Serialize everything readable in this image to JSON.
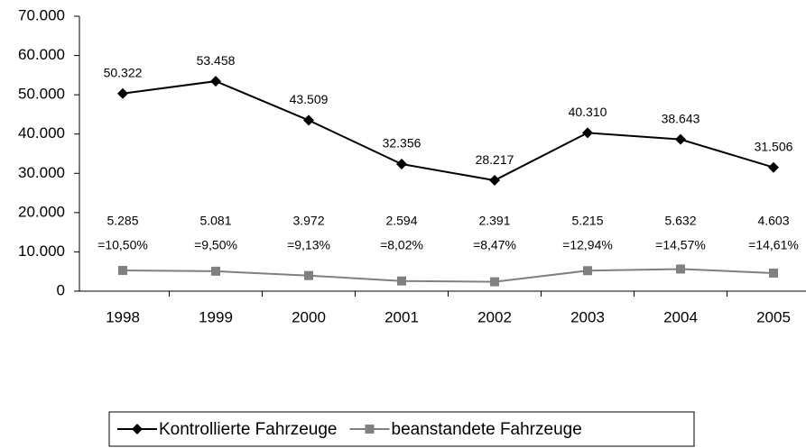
{
  "chart_data": {
    "type": "line",
    "categories": [
      "1998",
      "1999",
      "2000",
      "2001",
      "2002",
      "2003",
      "2004",
      "2005"
    ],
    "series": [
      {
        "name": "Kontrollierte Fahrzeuge",
        "color": "#000000",
        "marker": "diamond",
        "values": [
          50322,
          53458,
          43509,
          32356,
          28217,
          40310,
          38643,
          31506
        ],
        "value_labels": [
          "50.322",
          "53.458",
          "43.509",
          "32.356",
          "28.217",
          "40.310",
          "38.643",
          "31.506"
        ]
      },
      {
        "name": "beanstandete Fahrzeuge",
        "color": "#808080",
        "marker": "square",
        "values": [
          5285,
          5081,
          3972,
          2594,
          2391,
          5215,
          5632,
          4603
        ],
        "value_labels": [
          "5.285",
          "5.081",
          "3.972",
          "2.594",
          "2.391",
          "5.215",
          "5.632",
          "4.603"
        ],
        "shares": [
          "=10,50%",
          "=9,50%",
          "=9,13%",
          "=8,02%",
          "=8,47%",
          "=12,94%",
          "=14,57%",
          "=14,61%"
        ]
      }
    ],
    "ylim": [
      0,
      70000
    ],
    "yticks": [
      0,
      {
        "value": 10000,
        "label": "10.000"
      },
      {
        "value": 20000,
        "label": "20.000"
      },
      {
        "value": 30000,
        "label": "30.000"
      },
      {
        "value": 40000,
        "label": "40.000"
      },
      {
        "value": 50000,
        "label": "50.000"
      },
      {
        "value": 60000,
        "label": "60.000"
      },
      {
        "value": 70000,
        "label": "70.000"
      }
    ],
    "grid": false,
    "legend": "bottom"
  }
}
